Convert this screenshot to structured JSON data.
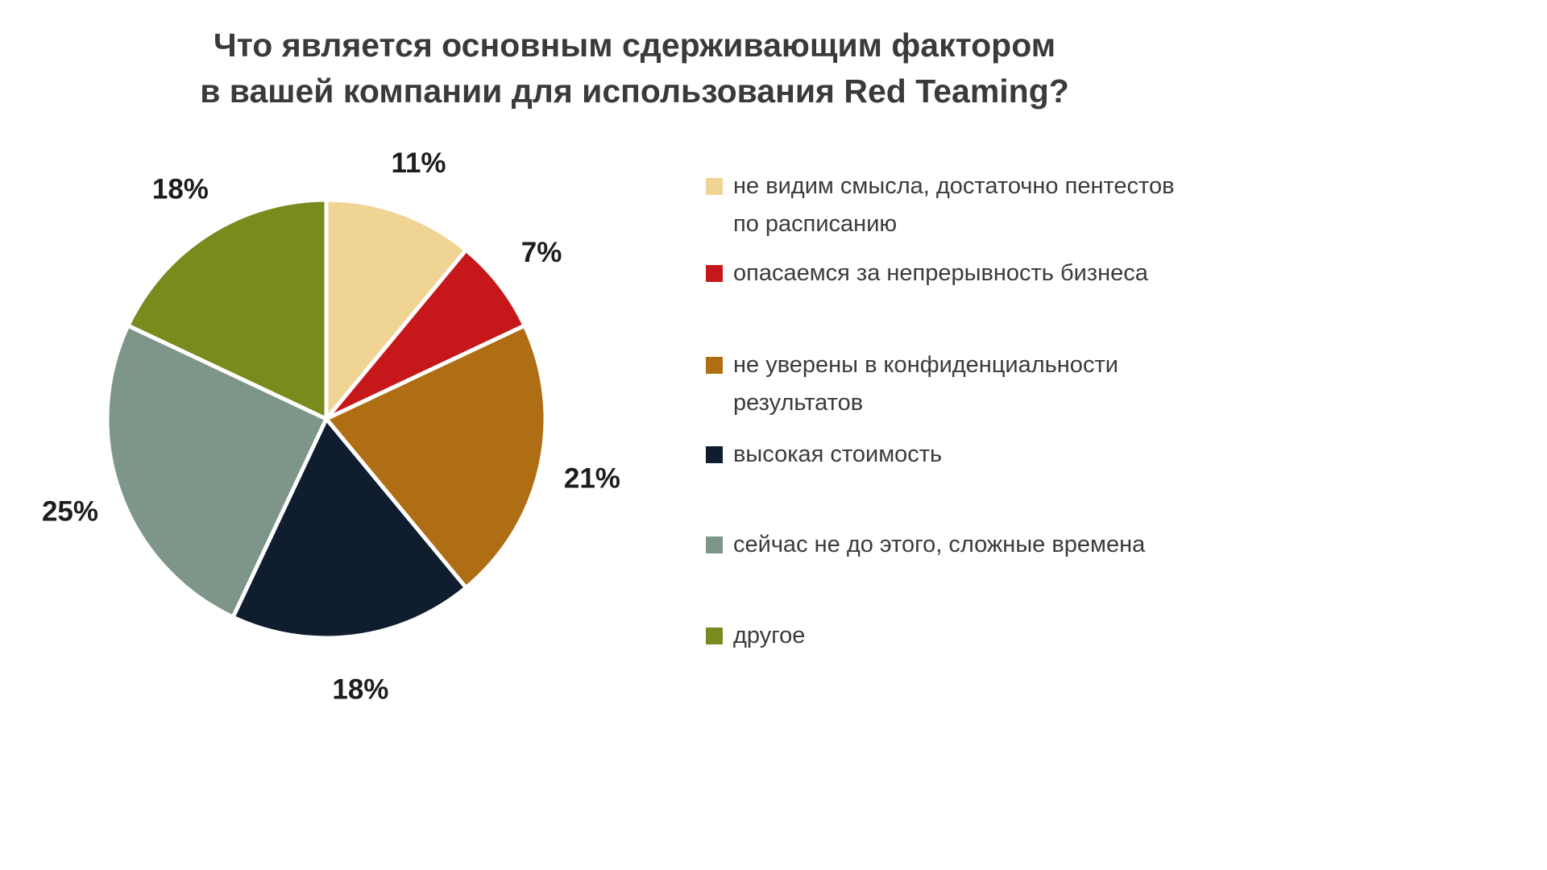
{
  "chart_data": {
    "type": "pie",
    "title": "Что является основным сдерживающим фактором в вашей компании для использования Red Teaming?",
    "title_lines": [
      "Что является основным сдерживающим фактором",
      "в вашей компании для использования Red Teaming?"
    ],
    "direction": "clockwise",
    "start_angle_deg": 0,
    "legend_position": "right",
    "units": "%",
    "slices": [
      {
        "label": "не видим смысла, достаточно пентестов по расписанию",
        "value": 11,
        "percent_label": "11%",
        "color": "#F0D494"
      },
      {
        "label": "опасаемся за непрерывность бизнеса",
        "value": 7,
        "percent_label": "7%",
        "color": "#C6181B"
      },
      {
        "label": "не уверены в конфиденциальности результатов",
        "value": 21,
        "percent_label": "21%",
        "color": "#B06E14"
      },
      {
        "label": "высокая стоимость",
        "value": 18,
        "percent_label": "18%",
        "color": "#0F1D2F"
      },
      {
        "label": "сейчас не до этого, сложные времена",
        "value": 25,
        "percent_label": "25%",
        "color": "#7E9589"
      },
      {
        "label": "другое",
        "value": 18,
        "percent_label": "18%",
        "color": "#798B1D"
      }
    ]
  }
}
